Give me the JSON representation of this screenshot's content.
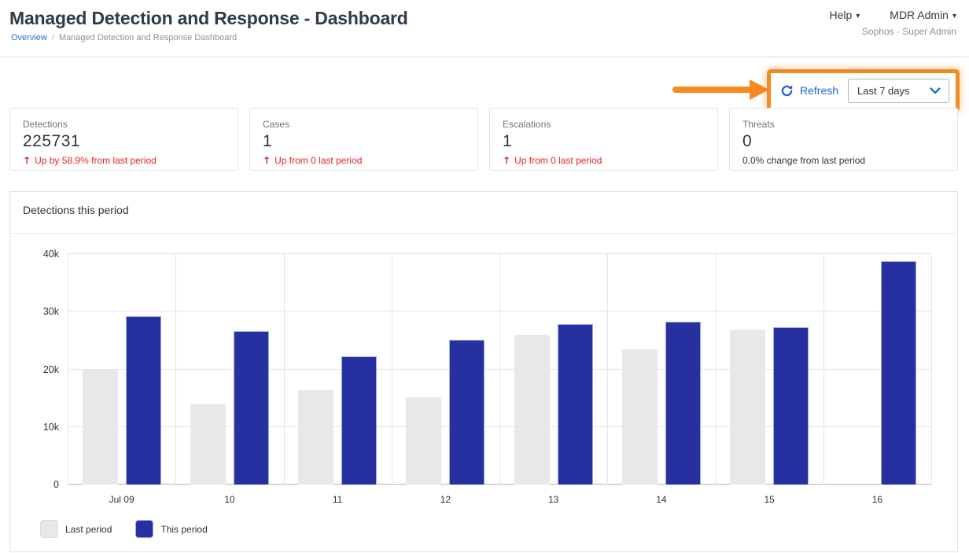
{
  "page": {
    "title": "Managed Detection and Response - Dashboard",
    "breadcrumb": {
      "link": "Overview",
      "separator": "/",
      "current": "Managed Detection and Response Dashboard"
    }
  },
  "header": {
    "help_label": "Help",
    "account_label": "MDR Admin",
    "account_subtitle": "Sophos · Super Admin"
  },
  "icons": {
    "caret_down": "▾",
    "up_arrow": "↑"
  },
  "toolbar": {
    "refresh_label": "Refresh",
    "date_range_value": "Last 7 days"
  },
  "stats": [
    {
      "label": "Detections",
      "value": "225731",
      "arrow": "↑",
      "delta": "Up by 58.9% from last period"
    },
    {
      "label": "Cases",
      "value": "1",
      "arrow": "↑",
      "delta": "Up from 0 last period"
    },
    {
      "label": "Escalations",
      "value": "1",
      "arrow": "↑",
      "delta": "Up from 0 last period"
    },
    {
      "label": "Threats",
      "value": "0",
      "arrow": "",
      "delta": "0.0% change from last period"
    }
  ],
  "chart": {
    "title": "Detections this period"
  },
  "chart_data": {
    "type": "bar",
    "title": "Detections this period",
    "categories": [
      "Jul 09",
      "10",
      "11",
      "12",
      "13",
      "14",
      "15",
      "16"
    ],
    "series": [
      {
        "name": "Last period",
        "color": "#e8e8e8",
        "border": "#dddddd",
        "values": [
          19900,
          13900,
          16400,
          15100,
          25900,
          23500,
          26900,
          0
        ]
      },
      {
        "name": "This period",
        "color": "#26309e",
        "border": "#9fabe8",
        "values": [
          29200,
          26600,
          22300,
          25100,
          27900,
          28300,
          27300,
          38800
        ]
      }
    ],
    "xlabel": "",
    "ylabel": "",
    "ylim": [
      0,
      40000
    ],
    "ytick_labels": [
      "0",
      "10k",
      "20k",
      "30k",
      "40k"
    ],
    "grid": true,
    "legend_position": "bottom-left"
  },
  "colors": {
    "accent_orange": "#f68a1e",
    "link_blue": "#1f63c9",
    "bar_blue": "#26309e",
    "bar_gray": "#e8e8e8",
    "delta_red": "#e6232b",
    "title_navy": "#2e3b4a"
  }
}
